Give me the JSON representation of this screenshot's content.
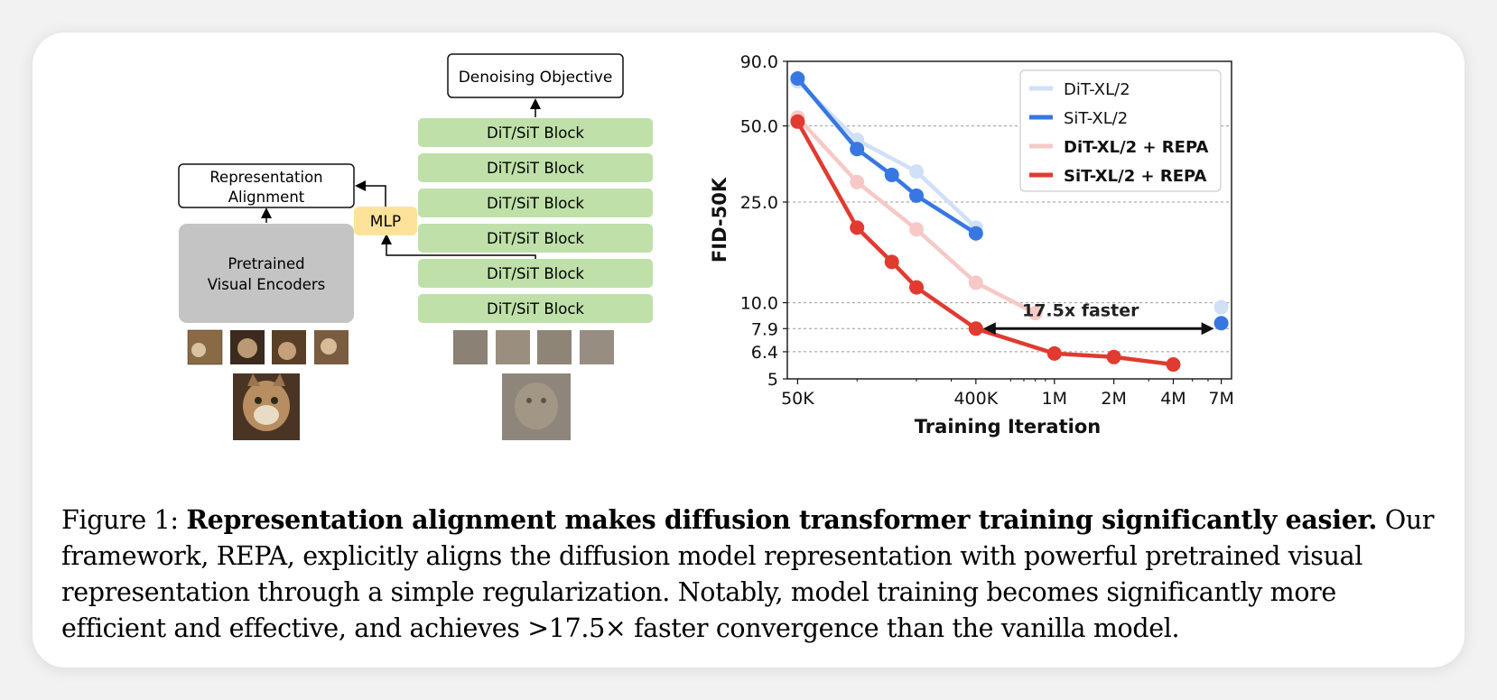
{
  "diagram": {
    "denoising_objective": "Denoising Objective",
    "blocks": [
      "DiT/SiT Block",
      "DiT/SiT Block",
      "DiT/SiT Block",
      "DiT/SiT Block",
      "DiT/SiT Block",
      "DiT/SiT Block"
    ],
    "representation_alignment": [
      "Representation",
      "Alignment"
    ],
    "mlp": "MLP",
    "encoder": [
      "Pretrained",
      "Visual Encoders"
    ],
    "colors": {
      "block": "#bfe0a9",
      "mlp": "#fde29a",
      "encoder": "#c4c4c4"
    }
  },
  "chart_data": {
    "type": "line",
    "xlabel": "Training Iteration",
    "ylabel": "FID-50K",
    "x_scale": "log",
    "y_scale": "log",
    "xlim": [
      50000,
      7000000
    ],
    "ylim": [
      5,
      90
    ],
    "x_ticks": [
      {
        "value": 50000,
        "label": "50K"
      },
      {
        "value": 400000,
        "label": "400K"
      },
      {
        "value": 1000000,
        "label": "1M"
      },
      {
        "value": 2000000,
        "label": "2M"
      },
      {
        "value": 4000000,
        "label": "4M"
      },
      {
        "value": 7000000,
        "label": "7M"
      }
    ],
    "y_ticks": [
      {
        "value": 90,
        "label": "90.0"
      },
      {
        "value": 50,
        "label": "50.0"
      },
      {
        "value": 25,
        "label": "25.0"
      },
      {
        "value": 10,
        "label": "10.0"
      },
      {
        "value": 7.9,
        "label": "7.9"
      },
      {
        "value": 6.4,
        "label": "6.4"
      },
      {
        "value": 5,
        "label": "5"
      }
    ],
    "grid_y": [
      50,
      25,
      10,
      7.9,
      6.4
    ],
    "legend_position": "top-right",
    "series": [
      {
        "name": "DiT-XL/2",
        "color": "#cfe0f7",
        "bold": false,
        "x": [
          50000,
          100000,
          200000,
          400000
        ],
        "y": [
          75.0,
          44.0,
          33.0,
          19.8
        ],
        "outlier": {
          "x": 7000000,
          "y": 9.6
        }
      },
      {
        "name": "SiT-XL/2",
        "color": "#3877e2",
        "bold": false,
        "x": [
          50000,
          100000,
          150000,
          200000,
          400000
        ],
        "y": [
          77.0,
          40.5,
          32.0,
          26.5,
          18.8
        ],
        "outlier": {
          "x": 7000000,
          "y": 8.3
        }
      },
      {
        "name": "DiT-XL/2 + REPA",
        "color": "#f6c9c6",
        "bold": true,
        "x": [
          50000,
          100000,
          200000,
          400000,
          800000
        ],
        "y": [
          54.0,
          30.0,
          19.5,
          12.0,
          9.1
        ]
      },
      {
        "name": "SiT-XL/2 + REPA",
        "color": "#e13a30",
        "bold": true,
        "x": [
          50000,
          100000,
          150000,
          200000,
          400000,
          1000000,
          2000000,
          4000000
        ],
        "y": [
          52.0,
          19.8,
          14.5,
          11.5,
          7.9,
          6.3,
          6.1,
          5.7
        ]
      }
    ],
    "annotation": {
      "text": "17.5x faster",
      "from": 400000,
      "to": 7000000,
      "y": 7.9
    }
  },
  "caption": {
    "label": "Figure 1: ",
    "bold": "Representation alignment makes diffusion transformer training significantly easier.",
    "text": " Our framework, REPA, explicitly aligns the diffusion model representation with powerful pretrained visual representation through a simple regularization. Notably, model training becomes significantly more efficient and effective, and achieves >17.5× faster convergence than the vanilla model."
  }
}
